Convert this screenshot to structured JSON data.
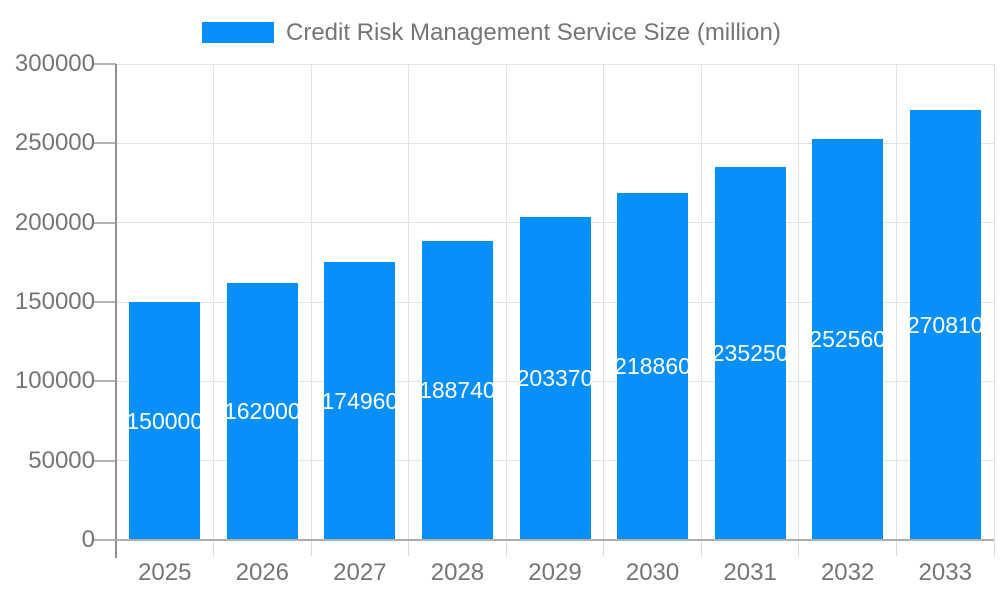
{
  "legend": {
    "series_label": "Credit Risk Management Service Size (million)"
  },
  "chart_data": {
    "type": "bar",
    "title": "Credit Risk Management Service Size (million)",
    "categories": [
      "2025",
      "2026",
      "2027",
      "2028",
      "2029",
      "2030",
      "2031",
      "2032",
      "2033"
    ],
    "values": [
      150000,
      162000,
      174960,
      188740,
      203370,
      218860,
      235250,
      252560,
      270810
    ],
    "bar_value_labels": [
      "150000",
      "162000",
      "174960",
      "188740",
      "203370",
      "218860",
      "235250",
      "252560",
      "270810"
    ],
    "xlabel": "",
    "ylabel": "",
    "ylim": [
      0,
      300000
    ],
    "yticks": [
      0,
      50000,
      100000,
      150000,
      200000,
      250000,
      300000
    ],
    "grid": true,
    "legend_position": "top-center",
    "colors": {
      "bar": "#0890fa",
      "bar_label_text": "#ffffff",
      "axis_text": "#757575",
      "gridline": "#e3e3e3",
      "y_axis_line": "#8f8f8f",
      "x_axis_line": "#adadad"
    }
  }
}
